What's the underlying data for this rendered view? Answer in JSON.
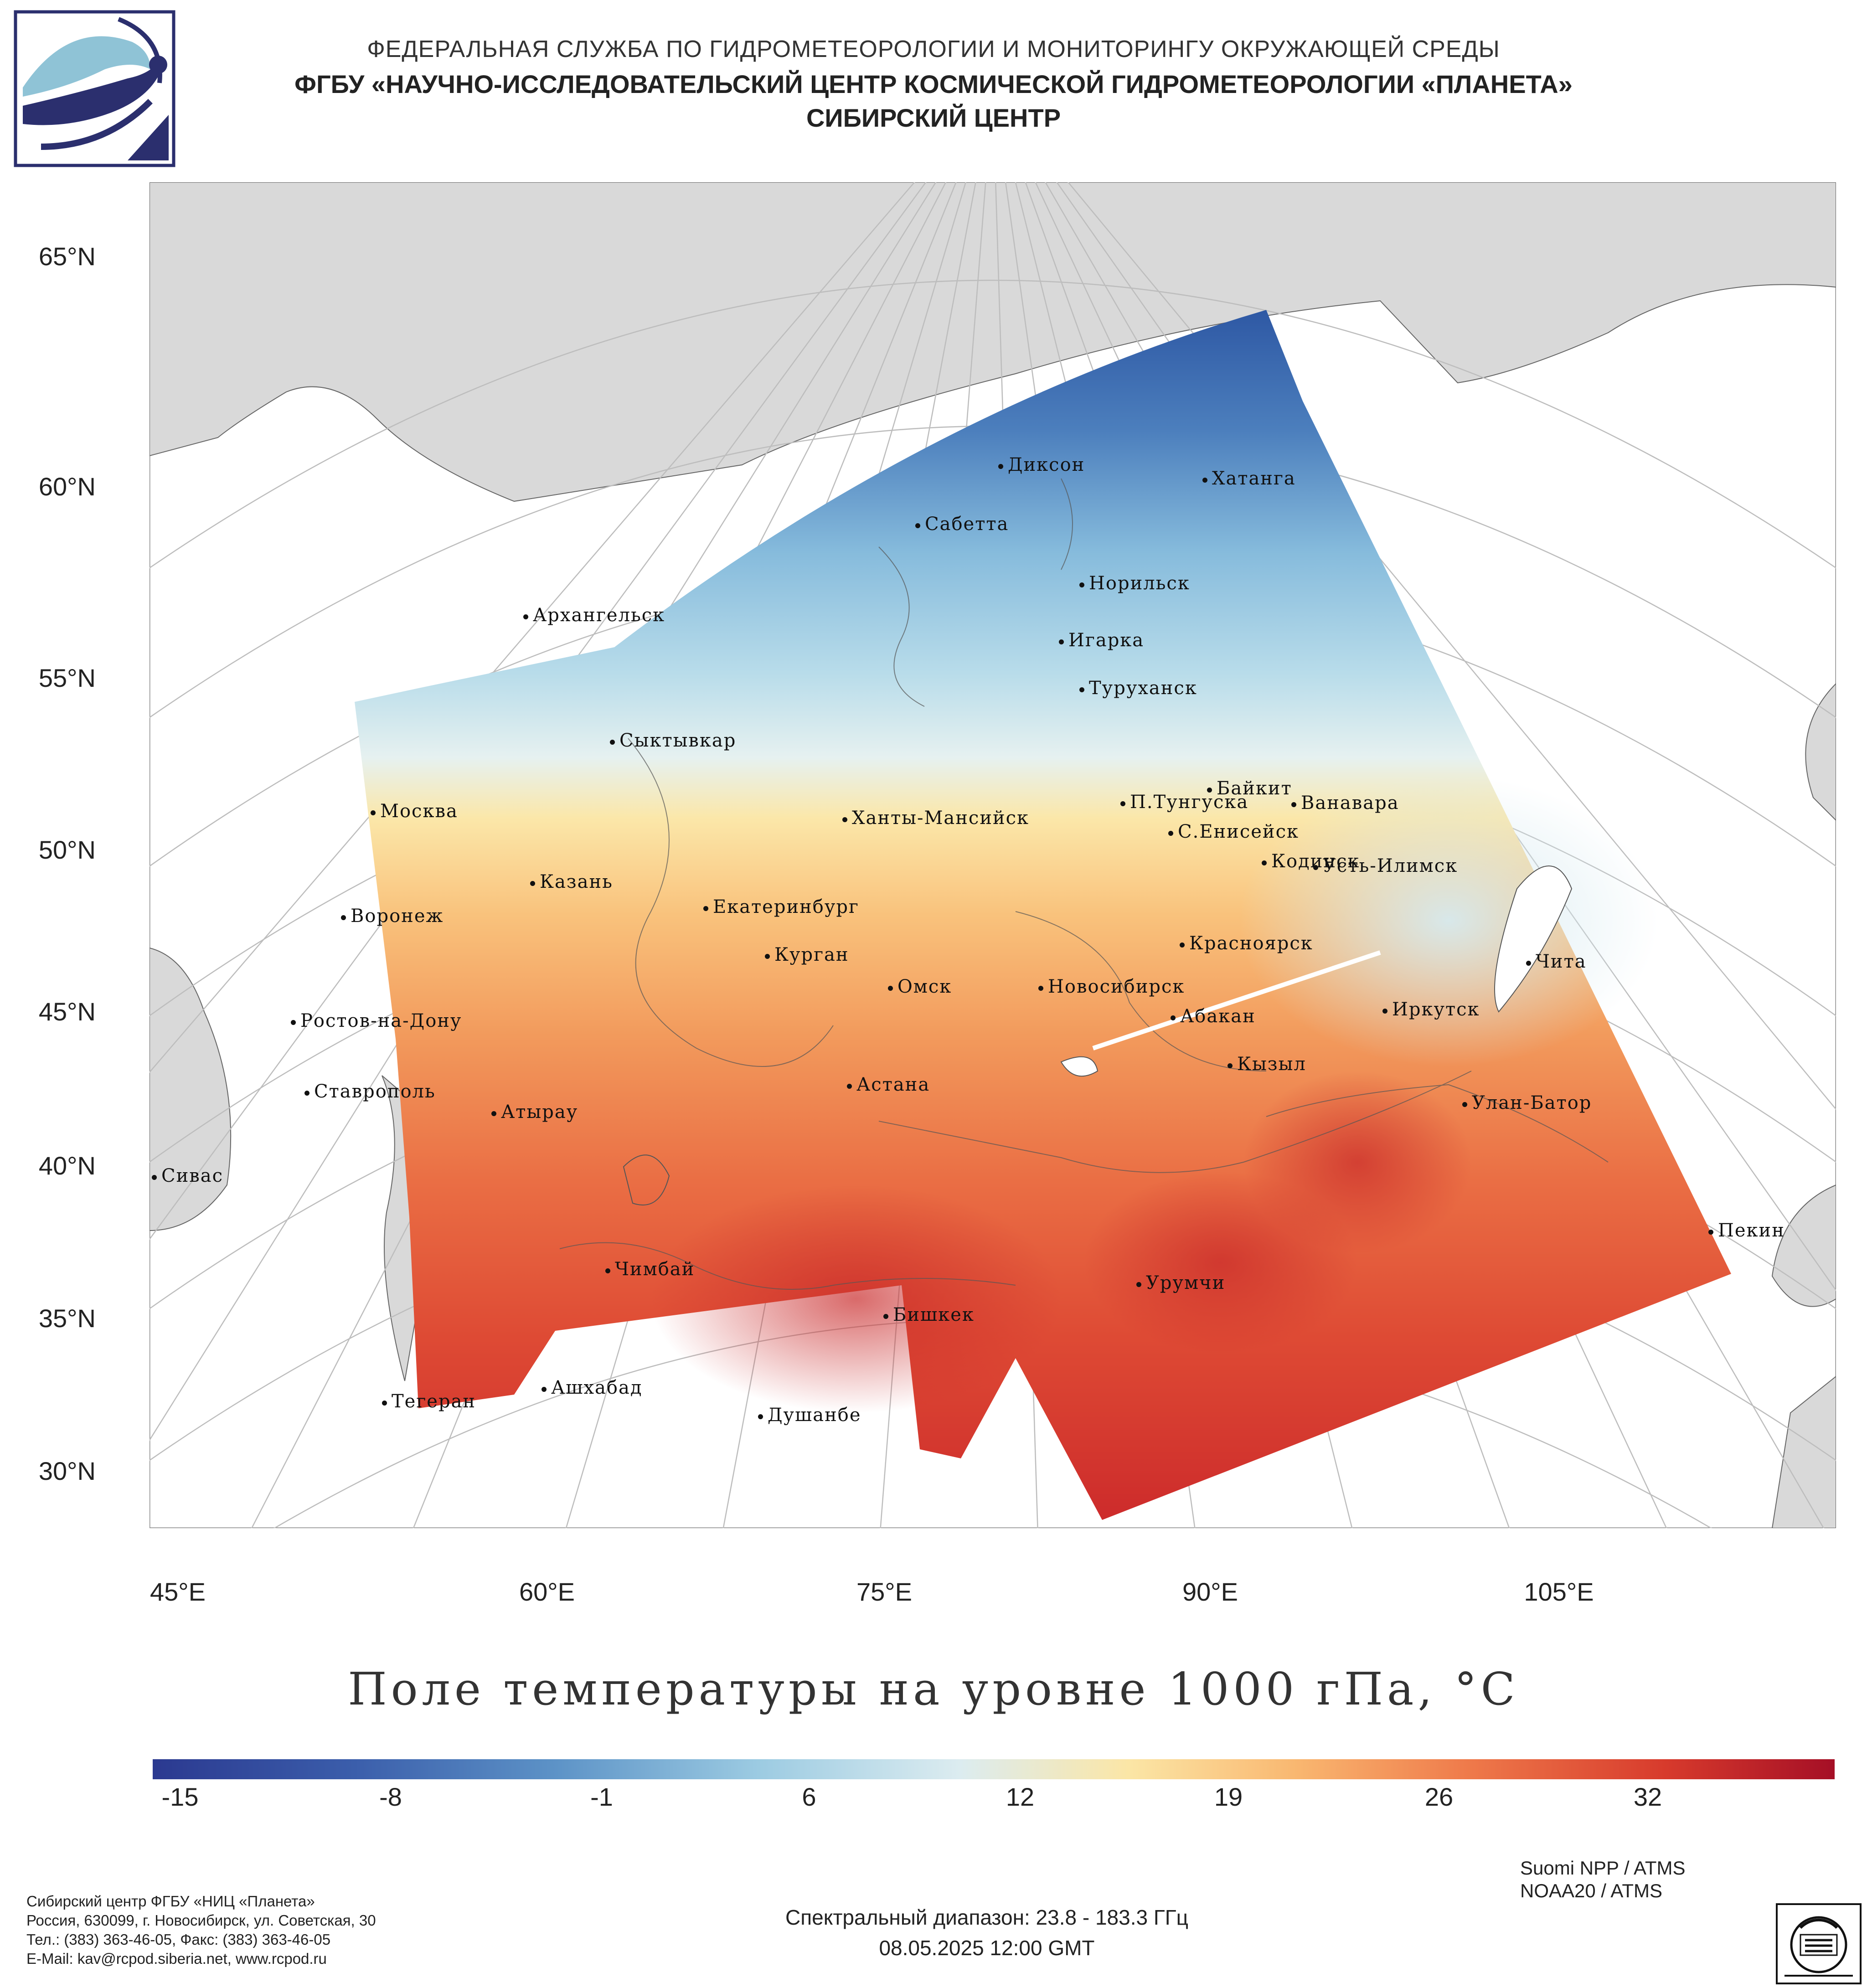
{
  "header": {
    "line1": "ФЕДЕРАЛЬНАЯ СЛУЖБА ПО ГИДРОМЕТЕОРОЛОГИИ И МОНИТОРИНГУ ОКРУЖАЮЩЕЙ СРЕДЫ",
    "line2": "ФГБУ «НАУЧНО-ИССЛЕДОВАТЕЛЬСКИЙ ЦЕНТР КОСМИЧЕСКОЙ ГИДРОМЕТЕОРОЛОГИИ «ПЛАНЕТА»",
    "line3": "СИБИРСКИЙ ЦЕНТР"
  },
  "axes": {
    "lat_labels": [
      "65°N",
      "60°N",
      "55°N",
      "50°N",
      "45°N",
      "40°N",
      "35°N",
      "30°N"
    ],
    "lon_labels": [
      "45°E",
      "60°E",
      "75°E",
      "90°E",
      "105°E"
    ]
  },
  "cities": [
    {
      "name": "Диксон"
    },
    {
      "name": "Хатанга"
    },
    {
      "name": "Сабетта"
    },
    {
      "name": "Норильск"
    },
    {
      "name": "Архангельск"
    },
    {
      "name": "Игарка"
    },
    {
      "name": "Туруханск"
    },
    {
      "name": "Сыктывкар"
    },
    {
      "name": "Байкит"
    },
    {
      "name": "П.Тунгуска"
    },
    {
      "name": "Ванавара"
    },
    {
      "name": "Москва"
    },
    {
      "name": "Ханты-Мансийск"
    },
    {
      "name": "С.Енисейск"
    },
    {
      "name": "Кодинск"
    },
    {
      "name": "Усть-Илимск"
    },
    {
      "name": "Казань"
    },
    {
      "name": "Екатеринбург"
    },
    {
      "name": "Воронеж"
    },
    {
      "name": "Красноярск"
    },
    {
      "name": "Курган"
    },
    {
      "name": "Чита"
    },
    {
      "name": "Омск"
    },
    {
      "name": "Новосибирск"
    },
    {
      "name": "Ростов-на-Дону"
    },
    {
      "name": "Абакан"
    },
    {
      "name": "Иркутск"
    },
    {
      "name": "Кызыл"
    },
    {
      "name": "Ставрополь"
    },
    {
      "name": "Астана"
    },
    {
      "name": "Атырау"
    },
    {
      "name": "Улан-Батор"
    },
    {
      "name": "Сивас"
    },
    {
      "name": "Пекин"
    },
    {
      "name": "Чимбай"
    },
    {
      "name": "Урумчи"
    },
    {
      "name": "Бишкек"
    },
    {
      "name": "Тегеран"
    },
    {
      "name": "Ашхабад"
    },
    {
      "name": "Душанбе"
    }
  ],
  "map_title": "Поле температуры на уровне 1000 гПа, °С",
  "colorbar": {
    "ticks": [
      "-15",
      "-8",
      "-1",
      "6",
      "12",
      "19",
      "26",
      "32"
    ],
    "colors": [
      "#2b3990",
      "#3b5eab",
      "#5d93c7",
      "#9ccbe2",
      "#dcecf0",
      "#fbe6a6",
      "#f9b770",
      "#ef7b4b",
      "#d73a2c",
      "#a50f26"
    ]
  },
  "footer": {
    "org": [
      "Сибирский центр ФГБУ «НИЦ «Планета»",
      "Россия, 630099, г. Новосибирск, ул. Советская, 30",
      "Тел.: (383) 363-46-05, Факс: (383) 363-46-05",
      "E-Mail: kav@rcpod.siberia.net, www.rcpod.ru"
    ],
    "spectral": "Спектральный диапазон: 23.8 - 183.3 ГГц",
    "datetime": "08.05.2025 12:00 GMT",
    "sat1": "Suomi NPP / ATMS",
    "sat2": "NOAA20 / ATMS"
  }
}
